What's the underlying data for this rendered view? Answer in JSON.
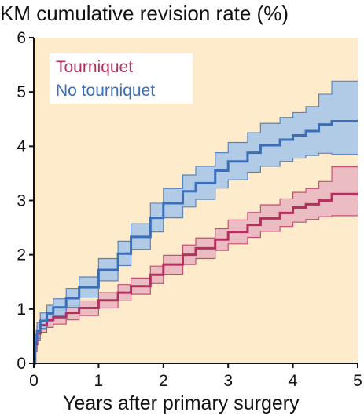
{
  "chart_data": {
    "type": "line",
    "ylabel": "KM cumulative revision rate (%)",
    "xlabel": "Years after primary surgery",
    "xlim": [
      0,
      5
    ],
    "ylim": [
      0,
      6
    ],
    "x_ticks": [
      "0",
      "1",
      "2",
      "3",
      "4",
      "5"
    ],
    "y_ticks": [
      "0",
      "1",
      "2",
      "3",
      "4",
      "5",
      "6"
    ],
    "grid": false,
    "legend_position": "top-left",
    "background_color": "#fdebcb",
    "series": [
      {
        "name": "Tourniquet",
        "color": "#b5305f",
        "band_color": "#e9b7c0",
        "x": [
          0,
          0.02,
          0.05,
          0.1,
          0.2,
          0.3,
          0.5,
          0.7,
          1.0,
          1.3,
          1.5,
          1.8,
          2.0,
          2.3,
          2.5,
          2.8,
          3.0,
          3.3,
          3.5,
          3.8,
          4.0,
          4.2,
          4.4,
          4.6,
          5.0
        ],
        "values": [
          0,
          0.35,
          0.55,
          0.7,
          0.8,
          0.85,
          0.93,
          1.02,
          1.16,
          1.3,
          1.42,
          1.63,
          1.82,
          2.0,
          2.12,
          2.28,
          2.42,
          2.55,
          2.67,
          2.77,
          2.87,
          2.93,
          3.0,
          3.12,
          3.12
        ],
        "lower": [
          0,
          0.22,
          0.42,
          0.57,
          0.66,
          0.72,
          0.8,
          0.88,
          1.02,
          1.15,
          1.27,
          1.47,
          1.64,
          1.82,
          1.93,
          2.08,
          2.2,
          2.32,
          2.43,
          2.52,
          2.6,
          2.65,
          2.7,
          2.72,
          2.72
        ],
        "upper": [
          0,
          0.47,
          0.68,
          0.83,
          0.93,
          0.98,
          1.06,
          1.15,
          1.3,
          1.45,
          1.57,
          1.79,
          1.99,
          2.18,
          2.31,
          2.48,
          2.64,
          2.78,
          2.92,
          3.03,
          3.15,
          3.22,
          3.35,
          3.62,
          3.62
        ]
      },
      {
        "name": "No tourniquet",
        "color": "#3a6fb7",
        "band_color": "#a8c8ea",
        "x": [
          0,
          0.02,
          0.05,
          0.1,
          0.2,
          0.3,
          0.5,
          0.7,
          1.0,
          1.3,
          1.5,
          1.8,
          2.0,
          2.3,
          2.5,
          2.8,
          3.0,
          3.3,
          3.5,
          3.8,
          4.0,
          4.2,
          4.4,
          4.6,
          5.0
        ],
        "values": [
          0,
          0.4,
          0.6,
          0.78,
          0.92,
          1.03,
          1.2,
          1.4,
          1.72,
          2.02,
          2.33,
          2.68,
          2.95,
          3.17,
          3.32,
          3.55,
          3.72,
          3.88,
          4.02,
          4.12,
          4.2,
          4.28,
          4.4,
          4.46,
          4.46
        ],
        "lower": [
          0,
          0.27,
          0.46,
          0.64,
          0.77,
          0.87,
          1.03,
          1.22,
          1.52,
          1.8,
          2.1,
          2.42,
          2.68,
          2.88,
          3.02,
          3.23,
          3.38,
          3.52,
          3.63,
          3.72,
          3.78,
          3.83,
          3.87,
          3.85,
          3.85
        ],
        "upper": [
          0,
          0.53,
          0.75,
          0.93,
          1.07,
          1.19,
          1.38,
          1.59,
          1.93,
          2.25,
          2.57,
          2.95,
          3.22,
          3.47,
          3.63,
          3.88,
          4.07,
          4.25,
          4.42,
          4.53,
          4.62,
          4.73,
          4.96,
          5.2,
          5.2
        ]
      }
    ]
  }
}
